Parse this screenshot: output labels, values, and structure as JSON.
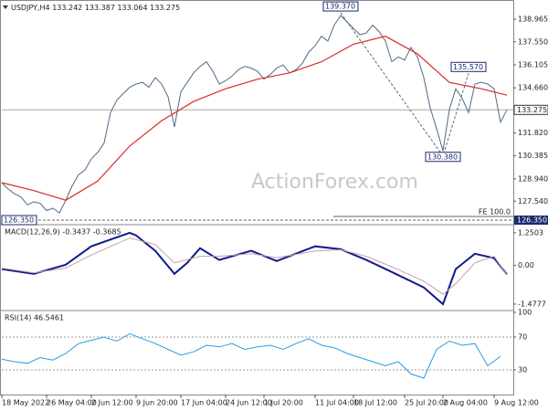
{
  "header": {
    "symbol": "USDJPY,H4",
    "ohlc": [
      133.242,
      133.387,
      133.064,
      133.275
    ]
  },
  "watermark": "ActionForex.com",
  "chart_data": [
    {
      "type": "line",
      "xlim": [
        0,
        80
      ],
      "ylim": [
        126.12,
        139.89
      ],
      "yticks": [
        138.965,
        {
          "value": 137.55,
          "label": "137.550"
        },
        136.105,
        {
          "value": 134.66,
          "label": "134.660"
        },
        {
          "value": 131.82,
          "label": "131.820"
        },
        130.385,
        {
          "value": 128.94,
          "label": "128.940"
        },
        {
          "value": 127.54,
          "label": "127.540"
        }
      ],
      "series": [
        {
          "color": "#4d6b85",
          "values": [
            128.68,
            128.3,
            128.0,
            127.8,
            127.3,
            127.5,
            127.4,
            126.95,
            127.1,
            126.8,
            127.6,
            128.5,
            129.2,
            129.5,
            130.2,
            130.6,
            131.2,
            133.1,
            133.9,
            134.3,
            134.7,
            134.9,
            135.0,
            134.7,
            135.3,
            134.9,
            134.1,
            132.2,
            134.4,
            135.0,
            135.6,
            136.0,
            136.3,
            135.7,
            134.9,
            135.1,
            135.4,
            135.8,
            136.0,
            135.9,
            135.7,
            135.2,
            135.5,
            135.9,
            136.1,
            135.6,
            135.8,
            136.2,
            136.9,
            137.3,
            137.9,
            137.6,
            138.6,
            139.2,
            138.8,
            138.4,
            138.0,
            138.1,
            138.6,
            138.2,
            137.6,
            136.3,
            136.6,
            136.4,
            137.2,
            136.6,
            135.3,
            133.4,
            132.1,
            130.7,
            133.3,
            134.6,
            134.0,
            133.1,
            134.9,
            135.0,
            134.9,
            134.6,
            132.5,
            133.275
          ]
        },
        {
          "color": "#e02828",
          "x": [
            0,
            5,
            10,
            15,
            20,
            25,
            30,
            35,
            40,
            45,
            50,
            55,
            60,
            65,
            70,
            75,
            79
          ],
          "values": [
            128.7,
            128.2,
            127.6,
            128.8,
            131.0,
            132.6,
            133.8,
            134.6,
            135.2,
            135.6,
            136.3,
            137.4,
            137.9,
            136.8,
            135.0,
            134.6,
            134.2
          ]
        }
      ],
      "last": 133.275,
      "annotations": [
        {
          "x": 53,
          "value": 139.37,
          "label": "139.370"
        },
        {
          "x": 73,
          "value": 135.57,
          "label": "135.570"
        },
        {
          "x": 69,
          "value": 130.38,
          "label": "130.380"
        },
        {
          "x": 0,
          "value": 126.35,
          "label": "126.350"
        }
      ],
      "fe_line": {
        "text": "FE 100.0",
        "value": 126.35,
        "label": "126.350"
      }
    },
    {
      "type": "macd",
      "title": "MACD(12,26,9) -0.3437 -0.3685",
      "xlim": [
        0,
        80
      ],
      "ylim": [
        -1.62,
        1.49
      ],
      "yticks": [
        1.2503,
        {
          "value": 0,
          "label": "0.00"
        },
        -1.4777
      ],
      "series": [
        {
          "color": "#101c8c",
          "x": [
            0,
            5,
            10,
            14,
            20,
            21,
            24,
            27,
            29,
            31,
            34,
            39,
            43,
            49,
            53,
            57,
            61,
            66,
            69,
            71,
            74,
            77,
            79
          ],
          "values": [
            -0.14,
            -0.32,
            0.03,
            0.73,
            1.25,
            1.15,
            0.56,
            -0.32,
            0.1,
            0.66,
            0.21,
            0.56,
            0.17,
            0.73,
            0.62,
            0.21,
            -0.25,
            -0.84,
            -1.48,
            -0.14,
            0.45,
            0.28,
            -0.34
          ]
        },
        {
          "color": "#c9a0a8",
          "x": [
            0,
            5,
            10,
            14,
            20,
            24,
            27,
            31,
            34,
            39,
            43,
            49,
            53,
            57,
            61,
            66,
            69,
            71,
            74,
            77,
            79
          ],
          "values": [
            -0.1,
            -0.28,
            -0.1,
            0.4,
            1.05,
            0.8,
            0.1,
            0.35,
            0.35,
            0.45,
            0.3,
            0.55,
            0.6,
            0.35,
            -0.05,
            -0.6,
            -1.1,
            -0.7,
            0.1,
            0.35,
            -0.37
          ]
        }
      ]
    },
    {
      "type": "rsi",
      "title": "RSI(14) 46.5461",
      "xlim": [
        0,
        80
      ],
      "ylim": [
        0,
        100
      ],
      "yticks": [
        100,
        70,
        30
      ],
      "series": [
        {
          "color": "#2e9be0",
          "x": [
            0,
            2,
            4,
            6,
            8,
            10,
            12,
            14,
            16,
            18,
            20,
            22,
            24,
            26,
            28,
            30,
            32,
            34,
            36,
            38,
            40,
            42,
            44,
            46,
            48,
            50,
            52,
            54,
            56,
            58,
            60,
            62,
            64,
            66,
            68,
            70,
            72,
            74,
            76,
            78
          ],
          "values": [
            43,
            40,
            38,
            45,
            42,
            50,
            62,
            66,
            70,
            65,
            74,
            68,
            62,
            55,
            48,
            52,
            60,
            58,
            62,
            55,
            58,
            60,
            55,
            62,
            68,
            60,
            57,
            50,
            45,
            40,
            35,
            40,
            25,
            20,
            55,
            65,
            60,
            62,
            35,
            46.55
          ]
        }
      ],
      "xticks": [
        {
          "value": 0,
          "label": "18 May 2022"
        },
        {
          "value": 7,
          "label": "26 May 04:00"
        },
        {
          "value": 14,
          "label": "2 Jun 12:00"
        },
        {
          "value": 21,
          "label": "9 Jun 20:00"
        },
        {
          "value": 28,
          "label": "17 Jun 04:00"
        },
        {
          "value": 35,
          "label": "24 Jun 12:00"
        },
        {
          "value": 41,
          "label": "1 Jul 20:00"
        },
        {
          "value": 49,
          "label": "11 Jul 04:00"
        },
        {
          "value": 55,
          "label": "18 Jul 12:00"
        },
        {
          "value": 63,
          "label": "25 Jul 20:00"
        },
        {
          "value": 69,
          "label": "2 Aug 04:00"
        },
        {
          "value": 77,
          "label": "9 Aug 12:00"
        }
      ]
    }
  ]
}
